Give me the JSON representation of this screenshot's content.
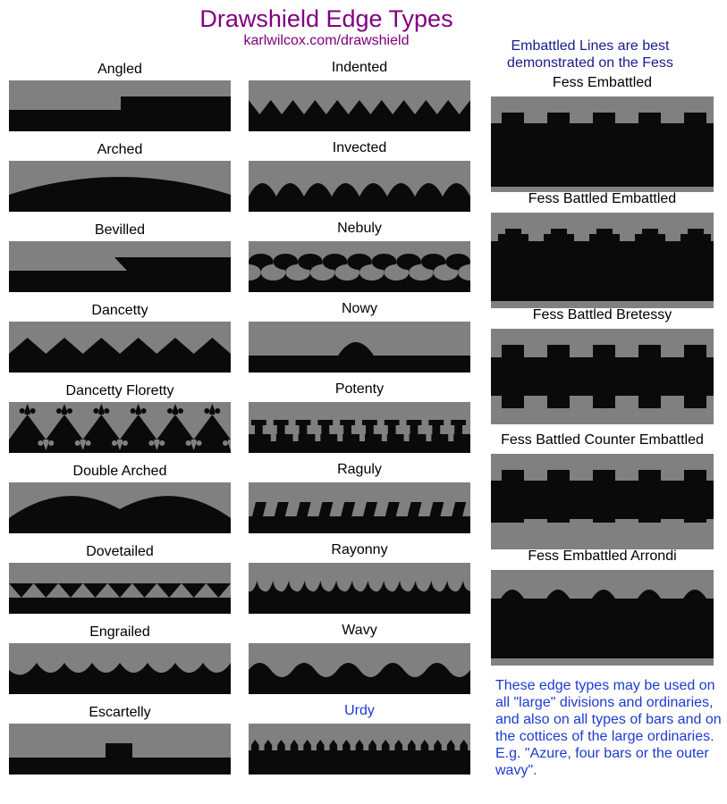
{
  "header": {
    "title": "Drawshield Edge Types",
    "subtitle": "karlwilcox.com/drawshield",
    "embattled_note": "Embattled Lines are best demonstrated on the Fess"
  },
  "footnote": "These edge types may be used on all \"large\" divisions and ordinaries, and also on all types of bars and on the cottices of the large ordinaries. E.g. \"Azure, four bars or the outer wavy\".",
  "colors": {
    "field": "#808080",
    "charge": "#0a0a0a",
    "title": "#800080",
    "link": "#1c3bd0"
  },
  "column_1": [
    {
      "label": "Angled",
      "shape": "angled"
    },
    {
      "label": "Arched",
      "shape": "arched"
    },
    {
      "label": "Bevilled",
      "shape": "bevilled"
    },
    {
      "label": "Dancetty",
      "shape": "dancetty"
    },
    {
      "label": "Dancetty Floretty",
      "shape": "dancetty-floretty"
    },
    {
      "label": "Double Arched",
      "shape": "double-arched"
    },
    {
      "label": "Dovetailed",
      "shape": "dovetailed"
    },
    {
      "label": "Engrailed",
      "shape": "engrailed"
    },
    {
      "label": "Escartelly",
      "shape": "escartelly"
    }
  ],
  "column_2": [
    {
      "label": "Indented",
      "shape": "indented"
    },
    {
      "label": "Invected",
      "shape": "invected"
    },
    {
      "label": "Nebuly",
      "shape": "nebuly"
    },
    {
      "label": "Nowy",
      "shape": "nowy"
    },
    {
      "label": "Potenty",
      "shape": "potenty"
    },
    {
      "label": "Raguly",
      "shape": "raguly"
    },
    {
      "label": "Rayonny",
      "shape": "rayonny"
    },
    {
      "label": "Wavy",
      "shape": "wavy"
    },
    {
      "label": "Urdy",
      "shape": "urdy",
      "link": true
    }
  ],
  "column_3": [
    {
      "label": "Fess Embattled",
      "shape": "fess-embattled"
    },
    {
      "label": "Fess Battled Embattled",
      "shape": "fess-battled-embattled"
    },
    {
      "label": "Fess Battled Bretessy",
      "shape": "fess-battled-bretessy"
    },
    {
      "label": "Fess Battled Counter Embattled",
      "shape": "fess-battled-counter-embattled"
    },
    {
      "label": "Fess Embattled Arrondi",
      "shape": "fess-embattled-arrondi"
    }
  ]
}
